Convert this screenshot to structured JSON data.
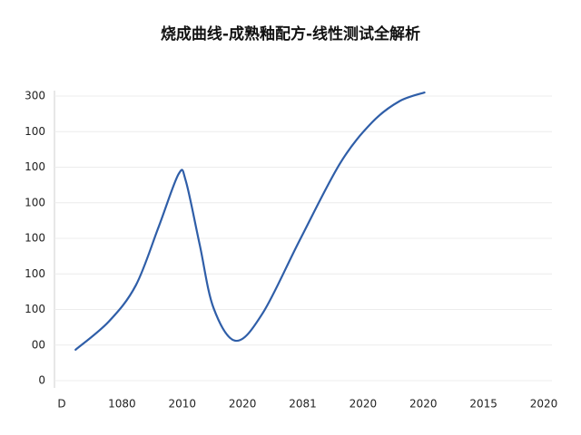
{
  "chart_data": {
    "type": "line",
    "title": "烧成曲线-成熟釉配方-线性测试全解析",
    "x": [
      0.23,
      0.78,
      1.23,
      1.61,
      1.94,
      2.06,
      2.29,
      2.52,
      2.89,
      3.34,
      3.95,
      4.62,
      5.15,
      5.6,
      6.02
    ],
    "series": [
      {
        "color": "#2f5ea8",
        "values": [
          0.87,
          1.66,
          2.68,
          4.33,
          5.81,
          5.61,
          3.82,
          2.04,
          1.12,
          1.91,
          3.95,
          6.11,
          7.26,
          7.85,
          8.1
        ]
      }
    ],
    "xlim": [
      0,
      8
    ],
    "ylim": [
      0,
      8
    ],
    "xticks": [
      {
        "value": 0,
        "label": "D"
      },
      {
        "value": 1,
        "label": "1080"
      },
      {
        "value": 2,
        "label": "2010"
      },
      {
        "value": 3,
        "label": "2020"
      },
      {
        "value": 4,
        "label": "2081"
      },
      {
        "value": 5,
        "label": "2020"
      },
      {
        "value": 6,
        "label": "2020"
      },
      {
        "value": 7,
        "label": "2015"
      },
      {
        "value": 8,
        "label": "2020"
      }
    ],
    "yticks": [
      0,
      {
        "value": 1,
        "label": "00"
      },
      {
        "value": 2,
        "label": "100"
      },
      {
        "value": 3,
        "label": "100"
      },
      {
        "value": 4,
        "label": "100"
      },
      {
        "value": 5,
        "label": "100"
      },
      {
        "value": 6,
        "label": "100"
      },
      {
        "value": 7,
        "label": "100"
      },
      {
        "value": 8,
        "label": "300"
      }
    ],
    "grid": true
  }
}
